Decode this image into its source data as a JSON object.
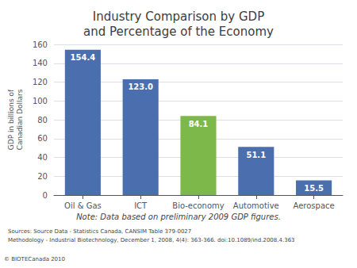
{
  "chart_data": {
    "type": "bar",
    "title": "Industry Comparison by GDP\nand Percentage of the Economy",
    "categories": [
      "Oil & Gas",
      "ICT",
      "Bio-economy",
      "Automotive",
      "Aerospace"
    ],
    "values": [
      154.4,
      123.0,
      84.1,
      51.1,
      15.5
    ],
    "value_labels": [
      "154.4",
      "123.0",
      "84.1",
      "51.1",
      "15.5"
    ],
    "data_labels": true,
    "colors": [
      "#4B6FAE",
      "#4B6FAE",
      "#7DB84B",
      "#4B6FAE",
      "#4B6FAE"
    ],
    "ylabel": "GDP in billions of\nCanadian Dollars",
    "ylim": [
      0,
      160
    ],
    "yticks": [
      0,
      20,
      40,
      60,
      80,
      100,
      120,
      140,
      160
    ],
    "grid": true,
    "annotations": [
      "Note: Data based on preliminary 2009 GDP figures.",
      "Sources: Source Data - Statistics Canada, CANSIM Table 379-0027",
      "Methodology - Industrial Biotechnology, December 1, 2008, 4(4): 363-366. doi:10.1089/ind.2008.4.363",
      "© BIOTECanada 2010"
    ]
  }
}
